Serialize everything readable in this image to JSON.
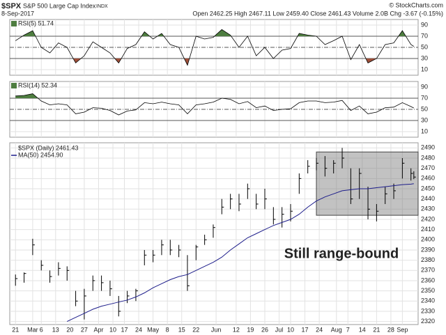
{
  "header": {
    "symbol": "$SPX",
    "name": "S&P 500 Large Cap Index",
    "exchange": "INDX",
    "date": "8-Sep-2017",
    "source": "© StockCharts.com",
    "quote": "Open 2462.25 High 2467.11 Low 2459.40 Close 2461.43 Volume 2.0B Chg -3.67 (-0.15%)"
  },
  "chart_data": [
    {
      "type": "line",
      "x": [
        0,
        3,
        6,
        9,
        12,
        15,
        18,
        21,
        24,
        27,
        30,
        33,
        36,
        39,
        42,
        45,
        48,
        51,
        54,
        57,
        60,
        63,
        66,
        69,
        72,
        75,
        78,
        81,
        84,
        87,
        90,
        93,
        96,
        99,
        102,
        105,
        108,
        111,
        114,
        117,
        120,
        123,
        126,
        129,
        132,
        135,
        138,
        139
      ],
      "series": [
        {
          "name": "RSI(5) 51.74",
          "color": "#000000",
          "values": [
            62,
            72,
            80,
            50,
            40,
            58,
            50,
            22,
            35,
            60,
            50,
            40,
            22,
            48,
            55,
            78,
            65,
            75,
            55,
            50,
            18,
            70,
            65,
            68,
            82,
            72,
            50,
            70,
            35,
            50,
            30,
            45,
            48,
            75,
            72,
            70,
            55,
            62,
            70,
            28,
            55,
            22,
            30,
            55,
            58,
            80,
            55,
            51.74
          ]
        }
      ],
      "xlim": [
        -2,
        140.5
      ],
      "ylim": [
        0,
        100
      ],
      "yticks": [
        10,
        30,
        50,
        70,
        90
      ],
      "fill_above": 70,
      "fill_below": 30,
      "above_color": "#4e7d40",
      "below_color": "#a0503a"
    },
    {
      "type": "line",
      "x": [
        0,
        3,
        6,
        9,
        12,
        15,
        18,
        21,
        24,
        27,
        30,
        33,
        36,
        39,
        42,
        45,
        48,
        51,
        54,
        57,
        60,
        63,
        66,
        69,
        72,
        75,
        78,
        81,
        84,
        87,
        90,
        93,
        96,
        99,
        102,
        105,
        108,
        111,
        114,
        117,
        120,
        123,
        126,
        129,
        132,
        135,
        138,
        139
      ],
      "series": [
        {
          "name": "RSI(14) 52.34",
          "color": "#000000",
          "values": [
            74,
            75,
            78,
            65,
            58,
            60,
            58,
            42,
            45,
            53,
            52,
            48,
            40,
            47,
            49,
            62,
            60,
            63,
            60,
            58,
            42,
            58,
            60,
            63,
            70,
            68,
            60,
            64,
            53,
            56,
            48,
            50,
            51,
            62,
            65,
            65,
            62,
            63,
            66,
            48,
            56,
            42,
            45,
            53,
            54,
            62,
            55,
            52.34
          ]
        }
      ],
      "xlim": [
        -2,
        140.5
      ],
      "ylim": [
        0,
        100
      ],
      "yticks": [
        10,
        30,
        50,
        70,
        90
      ],
      "fill_above": 70,
      "fill_below": 30,
      "above_color": "#4e7d40",
      "below_color": "#a0503a"
    },
    {
      "type": "ohlc",
      "x": [
        0,
        3,
        6,
        9,
        12,
        15,
        18,
        21,
        24,
        27,
        30,
        33,
        36,
        39,
        42,
        45,
        48,
        51,
        54,
        57,
        60,
        63,
        66,
        69,
        72,
        75,
        78,
        81,
        84,
        87,
        90,
        93,
        96,
        99,
        102,
        105,
        108,
        111,
        114,
        117,
        120,
        123,
        126,
        129,
        132,
        135,
        138,
        139
      ],
      "series": [
        {
          "name": "$SPX (Daily) 2461.43",
          "color": "#000000",
          "high": [
            2366,
            2368,
            2401,
            2380,
            2370,
            2378,
            2374,
            2350,
            2352,
            2365,
            2365,
            2360,
            2345,
            2350,
            2352,
            2390,
            2390,
            2400,
            2400,
            2395,
            2385,
            2395,
            2405,
            2415,
            2440,
            2445,
            2445,
            2455,
            2445,
            2450,
            2432,
            2432,
            2435,
            2465,
            2478,
            2480,
            2482,
            2478,
            2490,
            2470,
            2470,
            2452,
            2435,
            2452,
            2455,
            2480,
            2470,
            2467.11
          ],
          "low": [
            2355,
            2358,
            2385,
            2370,
            2358,
            2365,
            2360,
            2335,
            2322,
            2350,
            2350,
            2345,
            2325,
            2338,
            2340,
            2375,
            2378,
            2385,
            2385,
            2383,
            2350,
            2380,
            2395,
            2402,
            2425,
            2430,
            2428,
            2440,
            2430,
            2430,
            2415,
            2412,
            2418,
            2445,
            2465,
            2468,
            2462,
            2465,
            2470,
            2435,
            2440,
            2420,
            2418,
            2435,
            2440,
            2460,
            2458,
            2459.4
          ],
          "close": [
            2362,
            2367,
            2395,
            2375,
            2364,
            2372,
            2370,
            2340,
            2345,
            2360,
            2358,
            2352,
            2330,
            2345,
            2350,
            2385,
            2385,
            2395,
            2390,
            2390,
            2355,
            2393,
            2400,
            2412,
            2432,
            2440,
            2435,
            2450,
            2435,
            2440,
            2420,
            2425,
            2428,
            2460,
            2472,
            2475,
            2470,
            2475,
            2480,
            2440,
            2465,
            2430,
            2428,
            2445,
            2448,
            2475,
            2465,
            2461.43
          ]
        },
        {
          "name": "MA(50) 2454.90",
          "color": "#1c1c8a",
          "values": [
            null,
            null,
            null,
            null,
            null,
            null,
            2320,
            2324,
            2328,
            2332,
            2335,
            2337,
            2339,
            2341,
            2344,
            2348,
            2353,
            2357,
            2361,
            2364,
            2366,
            2370,
            2374,
            2378,
            2383,
            2390,
            2396,
            2402,
            2406,
            2410,
            2414,
            2417,
            2420,
            2425,
            2432,
            2438,
            2442,
            2445,
            2448,
            2449,
            2450,
            2450,
            2451,
            2452,
            2453,
            2454,
            2454.5,
            2454.9
          ]
        }
      ],
      "xlim": [
        -2,
        140.5
      ],
      "ylim": [
        2317,
        2495
      ],
      "yticks": [
        2320,
        2330,
        2340,
        2350,
        2360,
        2370,
        2380,
        2390,
        2400,
        2410,
        2420,
        2430,
        2440,
        2450,
        2460,
        2470,
        2480,
        2490
      ],
      "xticks": [
        {
          "value": 0,
          "label": "21"
        },
        {
          "value": 6,
          "label": "Mar"
        },
        {
          "value": 9,
          "label": "6"
        },
        {
          "value": 14,
          "label": "13"
        },
        {
          "value": 19,
          "label": "20"
        },
        {
          "value": 24,
          "label": "27"
        },
        {
          "value": 29,
          "label": "Apr"
        },
        {
          "value": 34,
          "label": "10"
        },
        {
          "value": 38,
          "label": "17"
        },
        {
          "value": 43,
          "label": "24"
        },
        {
          "value": 48,
          "label": "May"
        },
        {
          "value": 53,
          "label": "8"
        },
        {
          "value": 58,
          "label": "15"
        },
        {
          "value": 63,
          "label": "22"
        },
        {
          "value": 70,
          "label": "Jun"
        },
        {
          "value": 77,
          "label": "12"
        },
        {
          "value": 82,
          "label": "19"
        },
        {
          "value": 87,
          "label": "26"
        },
        {
          "value": 92,
          "label": "Jul"
        },
        {
          "value": 96,
          "label": "10"
        },
        {
          "value": 101,
          "label": "17"
        },
        {
          "value": 106,
          "label": "24"
        },
        {
          "value": 112,
          "label": "Aug"
        },
        {
          "value": 116,
          "label": "7"
        },
        {
          "value": 121,
          "label": "14"
        },
        {
          "value": 126,
          "label": "21"
        },
        {
          "value": 131,
          "label": "28"
        },
        {
          "value": 135,
          "label": "Sep"
        }
      ],
      "range_box": {
        "x": [
          105,
          140.5
        ],
        "y": [
          2424,
          2486
        ]
      },
      "annotation": "Still range-bound",
      "annotation_color": "#e00000"
    }
  ]
}
